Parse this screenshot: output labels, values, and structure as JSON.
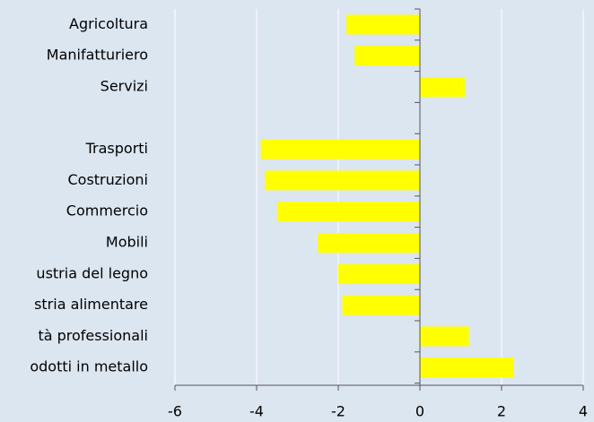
{
  "chart_data": {
    "type": "barh",
    "categories": [
      "Agricoltura",
      "Manifatturiero",
      "Servizi",
      null,
      "Trasporti",
      "Costruzioni",
      "Commercio",
      "Mobili",
      "ustria del legno",
      "stria alimentare",
      "tà professionali",
      "odotti in metallo"
    ],
    "values": [
      -1.8,
      -1.6,
      1.1,
      null,
      -3.9,
      -3.8,
      -3.5,
      -2.5,
      -2.0,
      -1.9,
      1.2,
      2.3
    ],
    "color": "#ffff00",
    "xlim": [
      -6,
      4
    ],
    "xticks": [
      -6,
      -4,
      -2,
      0,
      2,
      4
    ],
    "grid": true
  }
}
